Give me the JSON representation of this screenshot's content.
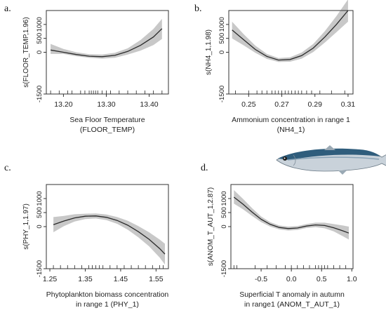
{
  "panels": [
    {
      "letter": "a."
    },
    {
      "letter": "b."
    },
    {
      "letter": "c."
    },
    {
      "letter": "d."
    }
  ],
  "colors": {
    "ci_band": "#c8c8c8",
    "line": "#2a2a2a",
    "frame": "#333333",
    "ticks": "#5b7a6a"
  },
  "fish_icon": "anchovy-fish-icon",
  "chart_data": [
    {
      "type": "line",
      "xlabel": "Sea Floor Temperature\n(FLOOR_TEMP)",
      "ylabel": "s(FLOOR_TEMP,1.96)",
      "xlim": [
        13.16,
        13.445
      ],
      "ylim": [
        -1500,
        1500
      ],
      "xticks": [
        13.2,
        13.3,
        13.4
      ],
      "xtick_labels": [
        "13.20",
        "13.30",
        "13.40"
      ],
      "yticks": [
        -1500,
        0,
        500,
        1000
      ],
      "ytick_labels": [
        "-1500",
        "0",
        "500",
        "1000"
      ],
      "series": [
        {
          "x": [
            13.17,
            13.2,
            13.23,
            13.26,
            13.29,
            13.32,
            13.35,
            13.38,
            13.41,
            13.43
          ],
          "values": [
            80,
            0,
            -80,
            -140,
            -160,
            -110,
            30,
            250,
            550,
            850
          ],
          "lower": [
            -60,
            -60,
            -140,
            -200,
            -230,
            -200,
            -80,
            60,
            260,
            480
          ],
          "upper": [
            300,
            120,
            0,
            -70,
            -80,
            -20,
            140,
            440,
            840,
            1200
          ]
        }
      ],
      "rug": [
        13.17,
        13.19,
        13.21,
        13.22,
        13.24,
        13.25,
        13.26,
        13.265,
        13.27,
        13.275,
        13.28,
        13.29,
        13.3,
        13.31,
        13.33,
        13.35,
        13.37,
        13.39,
        13.41,
        13.43
      ]
    },
    {
      "type": "line",
      "xlabel": "Ammonium concentration in range 1\n(NH4_1)",
      "ylabel": "s(NH4_1,1.98)",
      "xlim": [
        0.238,
        0.313
      ],
      "ylim": [
        -1500,
        1500
      ],
      "xticks": [
        0.25,
        0.27,
        0.29,
        0.31
      ],
      "xtick_labels": [
        "0.25",
        "0.27",
        "0.29",
        "0.31"
      ],
      "yticks": [
        -1500,
        0,
        500,
        1000
      ],
      "ytick_labels": [
        "-1500",
        "0",
        "500",
        "1000"
      ],
      "series": [
        {
          "x": [
            0.24,
            0.247,
            0.254,
            0.261,
            0.268,
            0.275,
            0.282,
            0.289,
            0.296,
            0.303,
            0.31
          ],
          "values": [
            800,
            450,
            100,
            -150,
            -280,
            -260,
            -120,
            150,
            550,
            1000,
            1500
          ],
          "lower": [
            500,
            250,
            -20,
            -240,
            -350,
            -340,
            -230,
            10,
            350,
            720,
            1100
          ],
          "upper": [
            1100,
            650,
            240,
            -60,
            -210,
            -180,
            -10,
            300,
            760,
            1300,
            1900
          ]
        }
      ],
      "rug": [
        0.242,
        0.25,
        0.255,
        0.258,
        0.261,
        0.264,
        0.266,
        0.268,
        0.27,
        0.272,
        0.274,
        0.276,
        0.278,
        0.28,
        0.282,
        0.285,
        0.288,
        0.293,
        0.3,
        0.308
      ]
    },
    {
      "type": "line",
      "xlabel": "Phytoplankton biomass concentration\nin range 1 (PHY_1)",
      "ylabel": "s(PHY_1,1.97)",
      "xlim": [
        1.24,
        1.585
      ],
      "ylim": [
        -1500,
        1500
      ],
      "xticks": [
        1.25,
        1.35,
        1.45,
        1.55
      ],
      "xtick_labels": [
        "1.25",
        "1.35",
        "1.45",
        "1.55"
      ],
      "yticks": [
        -1500,
        0,
        500,
        1000
      ],
      "ytick_labels": [
        "-1500",
        "0",
        "500",
        "1000"
      ],
      "series": [
        {
          "x": [
            1.26,
            1.29,
            1.32,
            1.35,
            1.38,
            1.41,
            1.44,
            1.47,
            1.5,
            1.53,
            1.56,
            1.575
          ],
          "values": [
            70,
            200,
            310,
            370,
            380,
            330,
            220,
            50,
            -180,
            -450,
            -780,
            -980
          ],
          "lower": [
            -200,
            20,
            180,
            270,
            290,
            230,
            100,
            -110,
            -380,
            -700,
            -1100,
            -1350
          ],
          "upper": [
            340,
            380,
            440,
            460,
            470,
            430,
            340,
            210,
            20,
            -200,
            -460,
            -610
          ]
        }
      ],
      "rug": [
        1.26,
        1.28,
        1.3,
        1.32,
        1.34,
        1.36,
        1.37,
        1.38,
        1.39,
        1.4,
        1.42,
        1.44,
        1.46,
        1.48,
        1.5,
        1.52,
        1.54,
        1.56,
        1.57
      ]
    },
    {
      "type": "line",
      "xlabel": "Superficial T anomaly in autumn\nin range1 (ANOM_T_AUT_1)",
      "ylabel": "s(ANOM_T_AUT_1,2.87)",
      "xlim": [
        -1.0,
        1.02
      ],
      "ylim": [
        -1500,
        1500
      ],
      "xticks": [
        -0.5,
        0.0,
        0.5,
        1.0
      ],
      "xtick_labels": [
        "-0.5",
        "0.0",
        "0.5",
        "1.0"
      ],
      "yticks": [
        -1500,
        0,
        500,
        1000
      ],
      "ytick_labels": [
        "-1500",
        "0",
        "500",
        "1000"
      ],
      "series": [
        {
          "x": [
            -0.95,
            -0.8,
            -0.65,
            -0.5,
            -0.35,
            -0.2,
            -0.05,
            0.1,
            0.25,
            0.4,
            0.55,
            0.7,
            0.85,
            0.95
          ],
          "values": [
            1050,
            800,
            520,
            260,
            80,
            -30,
            -70,
            -50,
            20,
            60,
            40,
            -40,
            -150,
            -230
          ],
          "lower": [
            820,
            620,
            380,
            160,
            0,
            -100,
            -140,
            -120,
            -50,
            -20,
            -60,
            -170,
            -340,
            -460
          ],
          "upper": [
            1300,
            990,
            660,
            360,
            160,
            40,
            0,
            20,
            90,
            140,
            140,
            90,
            40,
            0
          ]
        }
      ],
      "rug": [
        -0.95,
        -0.9,
        -0.6,
        -0.4,
        -0.25,
        -0.1,
        0.0,
        0.1,
        0.2,
        0.3,
        0.4,
        0.45,
        0.5,
        0.55,
        0.6,
        0.7,
        0.8,
        0.9
      ]
    }
  ]
}
